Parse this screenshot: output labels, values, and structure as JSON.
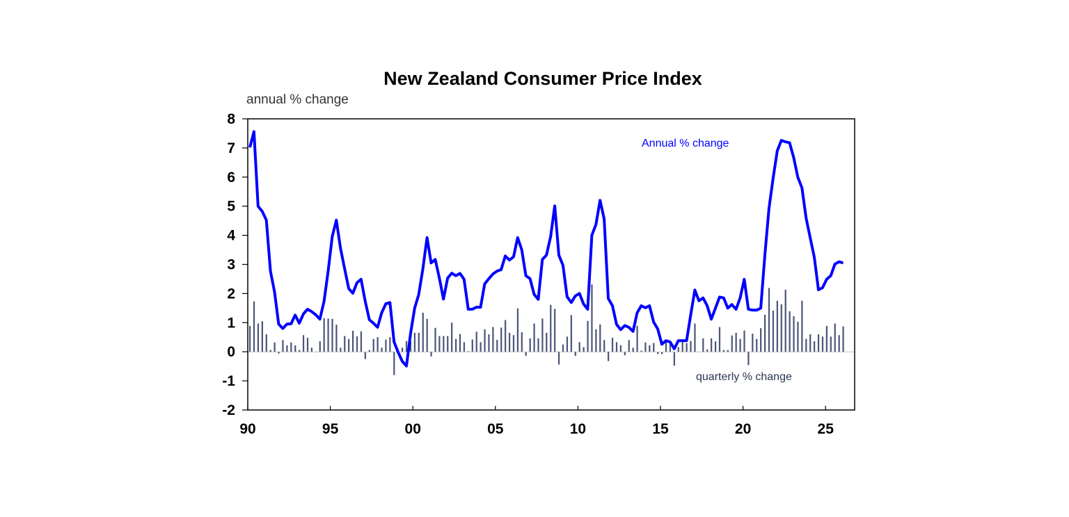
{
  "chart_data": {
    "type": "bar+line",
    "title": "New Zealand Consumer Price Index",
    "ylabel": "annual % change",
    "ylim": [
      -2,
      8
    ],
    "yticks": [
      "8",
      "7",
      "6",
      "5",
      "4",
      "3",
      "2",
      "1",
      "0",
      "-1",
      "-2"
    ],
    "xticks": [
      "90",
      "95",
      "00",
      "05",
      "10",
      "15",
      "20",
      "25"
    ],
    "frequency": "quarterly",
    "grid": false,
    "colors": {
      "line": "#0000ff",
      "bars": "#4a5578",
      "axis": "#000000"
    },
    "series": [
      {
        "name": "Annual % change",
        "type": "line",
        "values": [
          7.02,
          7.56,
          5.0,
          4.82,
          4.52,
          2.77,
          2.05,
          0.95,
          0.8,
          0.95,
          0.96,
          1.26,
          0.98,
          1.3,
          1.46,
          1.38,
          1.27,
          1.12,
          1.73,
          2.77,
          3.96,
          4.52,
          3.56,
          2.85,
          2.17,
          2.01,
          2.37,
          2.49,
          1.73,
          1.1,
          0.98,
          0.84,
          1.34,
          1.65,
          1.69,
          0.34,
          -0.02,
          -0.33,
          -0.49,
          0.62,
          1.5,
          1.97,
          2.85,
          3.92,
          3.05,
          3.17,
          2.53,
          1.81,
          2.53,
          2.7,
          2.61,
          2.69,
          2.49,
          1.46,
          1.46,
          1.53,
          1.53,
          2.33,
          2.51,
          2.67,
          2.77,
          2.82,
          3.29,
          3.15,
          3.26,
          3.92,
          3.5,
          2.61,
          2.51,
          1.97,
          1.8,
          3.17,
          3.32,
          3.96,
          5.01,
          3.32,
          2.97,
          1.89,
          1.69,
          1.92,
          2.0,
          1.64,
          1.46,
          4.0,
          4.37,
          5.2,
          4.56,
          1.83,
          1.58,
          0.94,
          0.76,
          0.9,
          0.84,
          0.7,
          1.34,
          1.58,
          1.51,
          1.58,
          1.02,
          0.78,
          0.26,
          0.38,
          0.34,
          0.1,
          0.38,
          0.38,
          0.38,
          1.26,
          2.12,
          1.75,
          1.85,
          1.58,
          1.12,
          1.5,
          1.88,
          1.85,
          1.5,
          1.62,
          1.46,
          1.85,
          2.49,
          1.46,
          1.43,
          1.43,
          1.5,
          3.32,
          4.92,
          5.95,
          6.9,
          7.26,
          7.21,
          7.18,
          6.67,
          5.99,
          5.63,
          4.6,
          3.92,
          3.25,
          2.13,
          2.2,
          2.49,
          2.61,
          3.01,
          3.09,
          3.05
        ]
      },
      {
        "name": "quarterly % change",
        "type": "bar",
        "values": [
          0.89,
          1.73,
          0.97,
          1.05,
          0.6,
          0.06,
          0.32,
          -0.06,
          0.4,
          0.22,
          0.32,
          0.22,
          0.06,
          0.57,
          0.48,
          0.14,
          0.0,
          0.36,
          1.15,
          1.14,
          1.13,
          0.93,
          0.14,
          0.54,
          0.44,
          0.72,
          0.53,
          0.7,
          -0.25,
          0.06,
          0.44,
          0.5,
          0.14,
          0.42,
          0.5,
          -0.8,
          0.0,
          0.14,
          0.37,
          0.36,
          0.65,
          0.65,
          1.34,
          1.13,
          -0.16,
          0.82,
          0.54,
          0.54,
          0.54,
          1.0,
          0.44,
          0.61,
          0.33,
          0.02,
          0.42,
          0.69,
          0.33,
          0.77,
          0.6,
          0.85,
          0.41,
          0.83,
          1.09,
          0.65,
          0.57,
          1.49,
          0.67,
          -0.14,
          0.46,
          0.97,
          0.46,
          1.14,
          0.65,
          1.61,
          1.47,
          -0.44,
          0.25,
          0.52,
          1.26,
          -0.14,
          0.33,
          0.16,
          1.06,
          2.31,
          0.77,
          0.94,
          0.4,
          -0.32,
          0.48,
          0.33,
          0.22,
          -0.12,
          0.4,
          0.14,
          0.89,
          0.04,
          0.32,
          0.22,
          0.3,
          -0.08,
          -0.08,
          0.32,
          0.32,
          -0.48,
          0.16,
          0.36,
          0.3,
          0.37,
          0.97,
          0.0,
          0.46,
          0.08,
          0.46,
          0.36,
          0.85,
          0.06,
          0.06,
          0.56,
          0.65,
          0.44,
          0.73,
          -0.46,
          0.62,
          0.44,
          0.81,
          1.27,
          2.19,
          1.41,
          1.75,
          1.63,
          2.13,
          1.39,
          1.22,
          1.03,
          1.75,
          0.44,
          0.6,
          0.36,
          0.6,
          0.52,
          0.89,
          0.52,
          0.97,
          0.57,
          0.87
        ]
      }
    ]
  }
}
